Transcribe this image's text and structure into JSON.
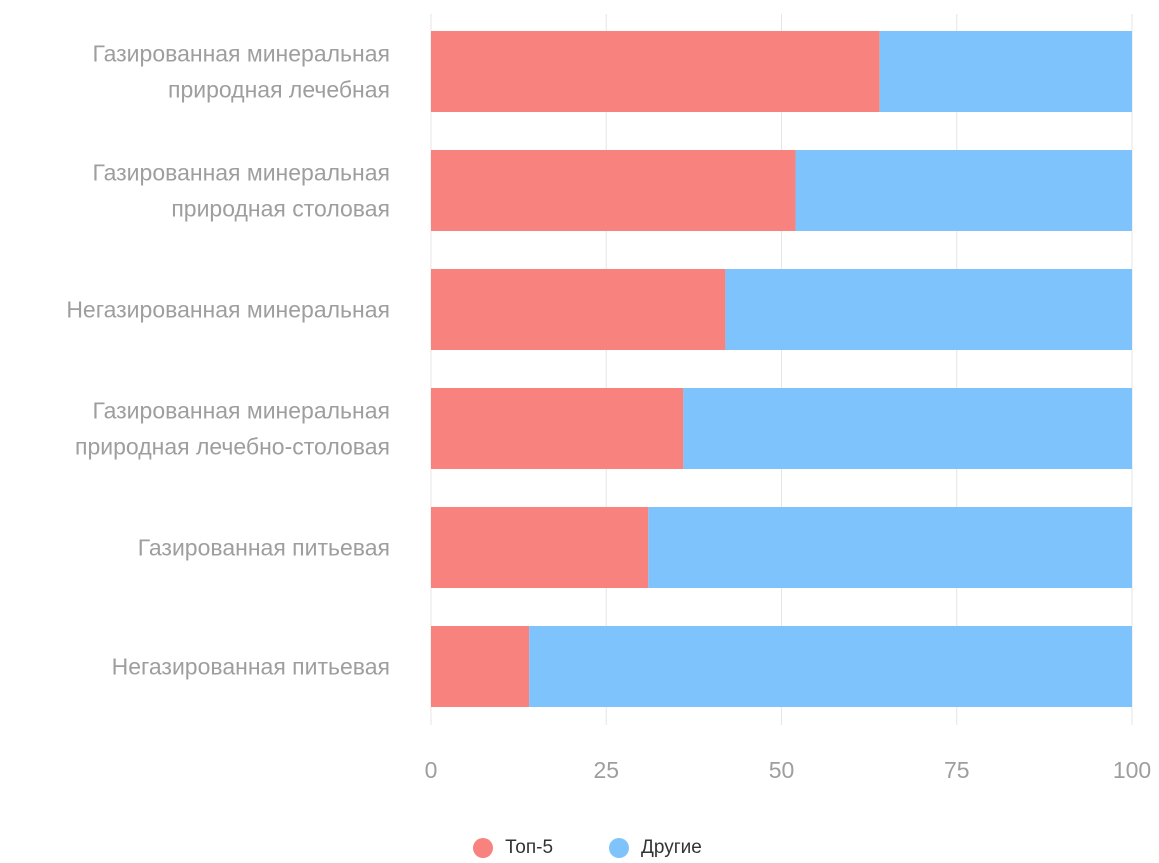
{
  "chart_data": {
    "type": "bar",
    "orientation": "horizontal",
    "stacked": true,
    "categories": [
      [
        "Газированная минеральная",
        "природная лечебная"
      ],
      [
        "Газированная минеральная",
        "природная столовая"
      ],
      [
        "Негазированная минеральная"
      ],
      [
        "Газированная минеральная",
        "природная лечебно-столовая"
      ],
      [
        "Газированная питьевая"
      ],
      [
        "Негазированная питьевая"
      ]
    ],
    "series": [
      {
        "name": "Топ-5",
        "color": "#f8827e",
        "values": [
          64,
          52,
          42,
          36,
          31,
          14
        ]
      },
      {
        "name": "Другие",
        "color": "#7fc3fc",
        "values": [
          36,
          48,
          58,
          64,
          69,
          86
        ]
      }
    ],
    "xlim": [
      0,
      100
    ],
    "x_ticks": [
      "0",
      "25",
      "50",
      "75",
      "100"
    ],
    "grid": true,
    "legend_position": "bottom-center"
  }
}
